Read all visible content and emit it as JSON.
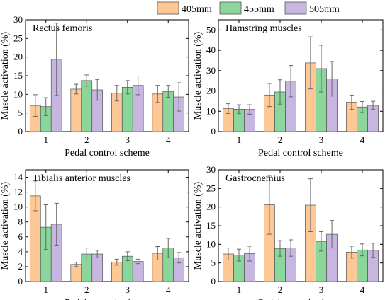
{
  "legend": {
    "items": [
      {
        "label": "405mm",
        "color": "#fdc896"
      },
      {
        "label": "455mm",
        "color": "#8ad69b"
      },
      {
        "label": "505mm",
        "color": "#c7b6e0"
      }
    ]
  },
  "chart_data": [
    {
      "type": "bar",
      "title": "Rectus femoris",
      "xlabel": "Pedal control scheme",
      "ylabel": "Muscle activation (%)",
      "categories": [
        "1",
        "2",
        "3",
        "4"
      ],
      "ylim": [
        0,
        30
      ],
      "yticks": [
        0,
        5,
        10,
        15,
        20,
        25,
        30
      ],
      "grid": false,
      "legend_position": "top-center",
      "series": [
        {
          "name": "405mm",
          "values": [
            7.0,
            11.4,
            10.3,
            10.1
          ],
          "errors": [
            2.9,
            1.3,
            2.1,
            2.3
          ]
        },
        {
          "name": "455mm",
          "values": [
            6.7,
            13.7,
            11.9,
            10.8
          ],
          "errors": [
            2.4,
            1.5,
            1.8,
            1.6
          ]
        },
        {
          "name": "505mm",
          "values": [
            19.4,
            11.2,
            12.4,
            9.3
          ],
          "errors": [
            9.7,
            2.8,
            2.5,
            3.8
          ]
        }
      ]
    },
    {
      "type": "bar",
      "title": "Hamstring muscles",
      "xlabel": "Pedal control scheme",
      "ylabel": "Muscle activation (%)",
      "categories": [
        "1",
        "2",
        "3",
        "4"
      ],
      "ylim": [
        0,
        55
      ],
      "yticks": [
        0,
        10,
        20,
        30,
        40,
        50
      ],
      "grid": false,
      "series": [
        {
          "name": "405mm",
          "values": [
            11.3,
            18.0,
            33.8,
            14.4
          ],
          "errors": [
            2.4,
            5.7,
            12.8,
            3.5
          ]
        },
        {
          "name": "455mm",
          "values": [
            11.0,
            19.5,
            31.0,
            12.1
          ],
          "errors": [
            2.2,
            6.0,
            11.5,
            2.7
          ]
        },
        {
          "name": "505mm",
          "values": [
            10.9,
            24.8,
            26.0,
            12.9
          ],
          "errors": [
            2.3,
            7.7,
            8.5,
            2.0
          ]
        }
      ]
    },
    {
      "type": "bar",
      "title": "Tibialis anterior muscles",
      "xlabel": "Pedal control scheme",
      "ylabel": "Muscle activation (%)",
      "categories": [
        "1",
        "2",
        "3",
        "4"
      ],
      "ylim": [
        0,
        15
      ],
      "yticks": [
        0,
        2,
        4,
        6,
        8,
        10,
        12,
        14
      ],
      "grid": false,
      "series": [
        {
          "name": "405mm",
          "values": [
            11.5,
            2.3,
            2.6,
            3.8
          ],
          "errors": [
            2.0,
            0.3,
            0.4,
            0.9
          ]
        },
        {
          "name": "455mm",
          "values": [
            7.3,
            3.7,
            3.4,
            4.5
          ],
          "errors": [
            3.0,
            0.8,
            0.6,
            1.3
          ]
        },
        {
          "name": "505mm",
          "values": [
            7.7,
            3.7,
            2.7,
            3.2
          ],
          "errors": [
            2.8,
            0.5,
            0.3,
            0.7
          ]
        }
      ]
    },
    {
      "type": "bar",
      "title": "Gastrocnemius",
      "xlabel": "Pedal control scheme",
      "ylabel": "Muscle activation (%)",
      "categories": [
        "1",
        "2",
        "3",
        "4"
      ],
      "ylim": [
        0,
        30
      ],
      "yticks": [
        0,
        5,
        10,
        15,
        20,
        25,
        30
      ],
      "grid": false,
      "series": [
        {
          "name": "405mm",
          "values": [
            7.4,
            20.6,
            20.5,
            7.9
          ],
          "errors": [
            1.6,
            7.9,
            7.1,
            1.6
          ]
        },
        {
          "name": "455mm",
          "values": [
            7.1,
            8.9,
            10.8,
            8.5
          ],
          "errors": [
            1.6,
            2.1,
            2.6,
            1.6
          ]
        },
        {
          "name": "505mm",
          "values": [
            7.5,
            9.0,
            12.7,
            8.4
          ],
          "errors": [
            2.0,
            2.2,
            3.7,
            1.9
          ]
        }
      ]
    }
  ]
}
